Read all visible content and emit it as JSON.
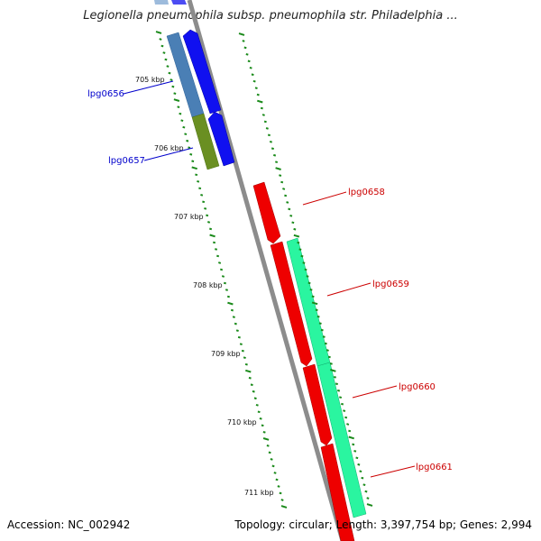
{
  "title": "Legionella pneumophila subsp. pneumophila str. Philadelphia ...",
  "footer": {
    "accession": "Accession: NC_002942",
    "topology": "Topology: circular; Length: 3,397,754 bp; Genes: 2,994"
  },
  "colors": {
    "backbone": "#8c8c8c",
    "tick": "#1a8a1a",
    "forward_label": "#0000cc",
    "reverse_label": "#cc0000"
  },
  "kbp_marks": [
    {
      "label": "705 kbp"
    },
    {
      "label": "706 kbp"
    },
    {
      "label": "707 kbp"
    },
    {
      "label": "708 kbp"
    },
    {
      "label": "709 kbp"
    },
    {
      "label": "710 kbp"
    },
    {
      "label": "711 kbp"
    }
  ],
  "genes": [
    {
      "id": "lpg0656",
      "label": "lpg0656"
    },
    {
      "id": "lpg0657",
      "label": "lpg0657"
    },
    {
      "id": "lpg0658",
      "label": "lpg0658"
    },
    {
      "id": "lpg0659",
      "label": "lpg0659"
    },
    {
      "id": "lpg0660",
      "label": "lpg0660"
    },
    {
      "id": "lpg0661",
      "label": "lpg0661"
    }
  ]
}
